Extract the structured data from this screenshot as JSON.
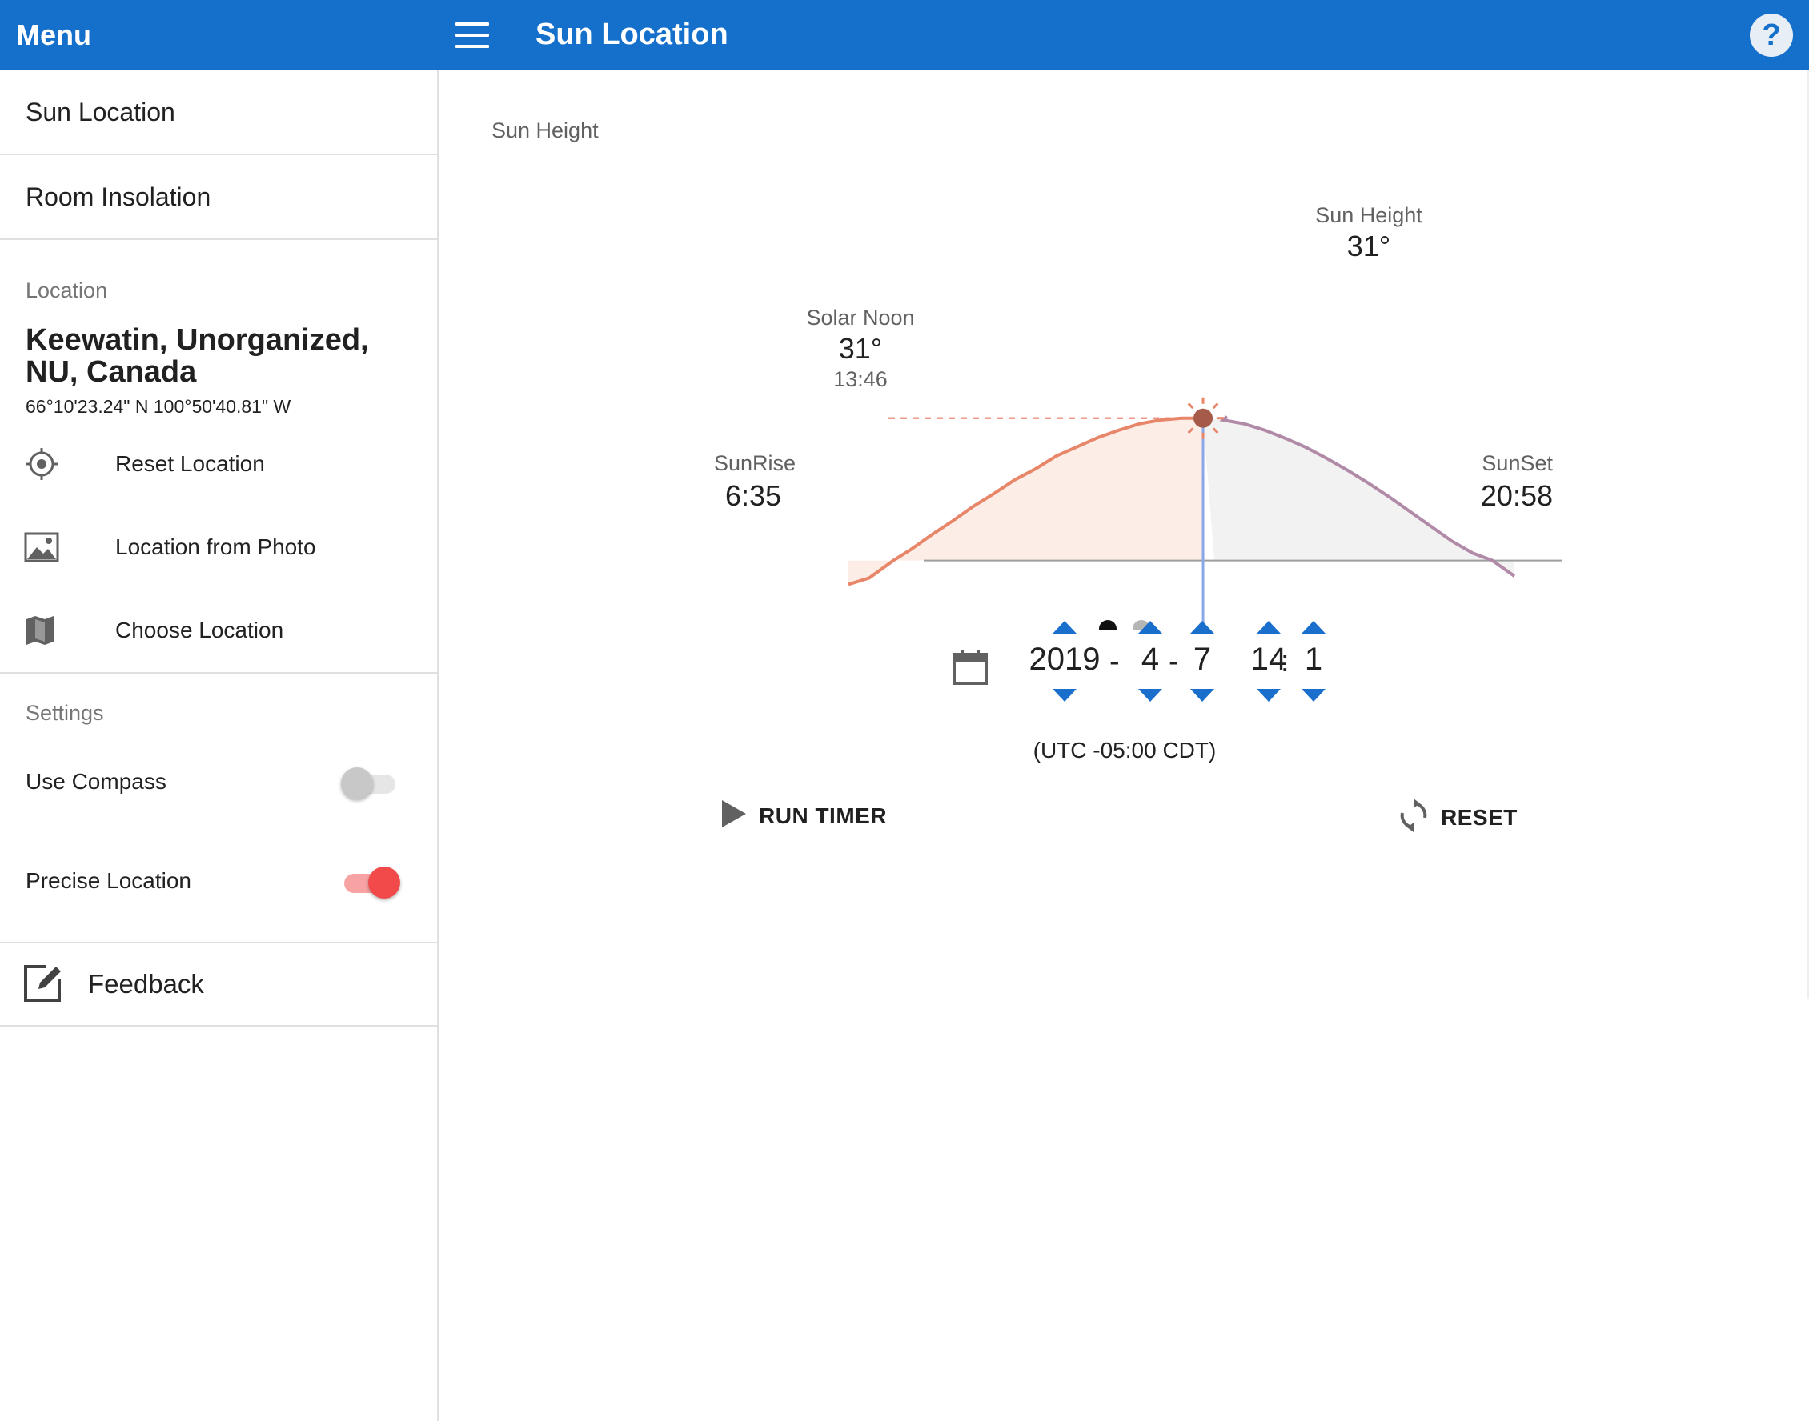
{
  "drawer": {
    "title": "Menu"
  },
  "appbar": {
    "title": "Sun Location",
    "help_label": "?"
  },
  "sidebar": {
    "nav": [
      {
        "label": "Sun Location"
      },
      {
        "label": "Room Insolation"
      }
    ],
    "location": {
      "section_label": "Location",
      "name_line1": "Keewatin, Unorganized,",
      "name_line2": "NU, Canada",
      "coords": "66°10'23.24\" N 100°50'40.81\" W",
      "actions": [
        {
          "label": "Reset Location",
          "icon": "crosshair-icon"
        },
        {
          "label": "Location from Photo",
          "icon": "image-icon"
        },
        {
          "label": "Choose Location",
          "icon": "map-icon"
        }
      ]
    },
    "settings": {
      "section_label": "Settings",
      "use_compass": {
        "label": "Use Compass",
        "on": false
      },
      "precise_location": {
        "label": "Precise Location",
        "on": true
      }
    },
    "feedback": {
      "label": "Feedback",
      "icon": "edit-icon"
    }
  },
  "main": {
    "section_title": "Sun Height",
    "current": {
      "label": "Sun Height",
      "value": "31°"
    },
    "solar_noon": {
      "label": "Solar Noon",
      "value": "31°",
      "time": "13:46"
    },
    "sunrise": {
      "label": "SunRise",
      "time": "6:35"
    },
    "sunset": {
      "label": "SunSet",
      "time": "20:58"
    },
    "date": {
      "year": "2019",
      "month": "4",
      "day": "7",
      "hour": "14",
      "minute": "1",
      "sep_date": "-",
      "sep_time": ":"
    },
    "timezone": "(UTC -05:00 CDT)",
    "run_timer_label": "RUN TIMER",
    "reset_label": "RESET",
    "page_dots": {
      "count": 2,
      "active": 0
    },
    "colors": {
      "before_now": "#e8866a",
      "after_now": "#b08aa6",
      "now_line": "#8aa8e8",
      "sun": "#a65a4a",
      "accent": "#1570cc"
    }
  },
  "chart_data": {
    "type": "line",
    "title": "",
    "xlabel": "",
    "ylabel": "",
    "x_unit": "hour of day",
    "y_unit": "degrees",
    "xlim": [
      5.5,
      21.5
    ],
    "ylim": [
      -6,
      32
    ],
    "series": [
      {
        "x": [
          5.5,
          6.0,
          6.58,
          7.0,
          7.5,
          8.0,
          8.5,
          9.0,
          9.5,
          10.0,
          10.5,
          11.0,
          11.5,
          12.0,
          12.5,
          13.0,
          13.5,
          13.77,
          14.02,
          14.5,
          15.0,
          15.5,
          16.0,
          16.5,
          17.0,
          17.5,
          18.0,
          18.5,
          19.0,
          19.5,
          20.0,
          20.5,
          20.97,
          21.5
        ],
        "y": [
          -5.2,
          -3.8,
          0.0,
          2.4,
          5.6,
          8.6,
          11.8,
          14.6,
          17.6,
          20.0,
          22.8,
          24.8,
          26.8,
          28.4,
          29.8,
          30.6,
          31.0,
          31.0,
          31.0,
          30.6,
          29.8,
          28.4,
          26.6,
          24.6,
          22.2,
          19.6,
          16.8,
          13.8,
          10.6,
          7.4,
          4.2,
          1.6,
          0.0,
          -3.4
        ]
      }
    ],
    "now_x": 14.02,
    "now_y": 31.0,
    "sunrise_x": 6.58,
    "sunset_x": 20.97,
    "solar_noon_x": 13.77,
    "grid": false
  }
}
